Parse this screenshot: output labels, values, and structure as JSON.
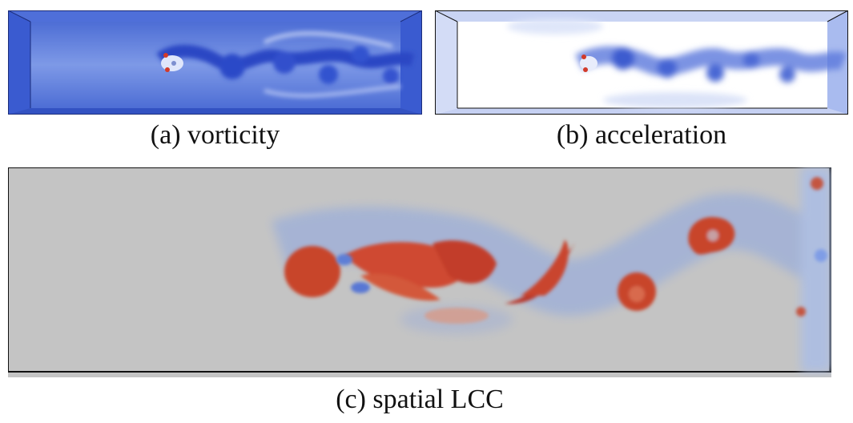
{
  "figure": {
    "panels": [
      {
        "id": "a",
        "caption": "(a) vorticity",
        "colormap": "blue"
      },
      {
        "id": "b",
        "caption": "(b) acceleration",
        "colormap": "white-blue"
      },
      {
        "id": "c",
        "caption": "(c) spatial LCC",
        "colormap": "diverging blue-gray-red"
      }
    ]
  },
  "colors": {
    "blue": "#3a5fd0",
    "red": "#c8402a",
    "gray": "#c4c4c4",
    "white": "#ffffff"
  }
}
